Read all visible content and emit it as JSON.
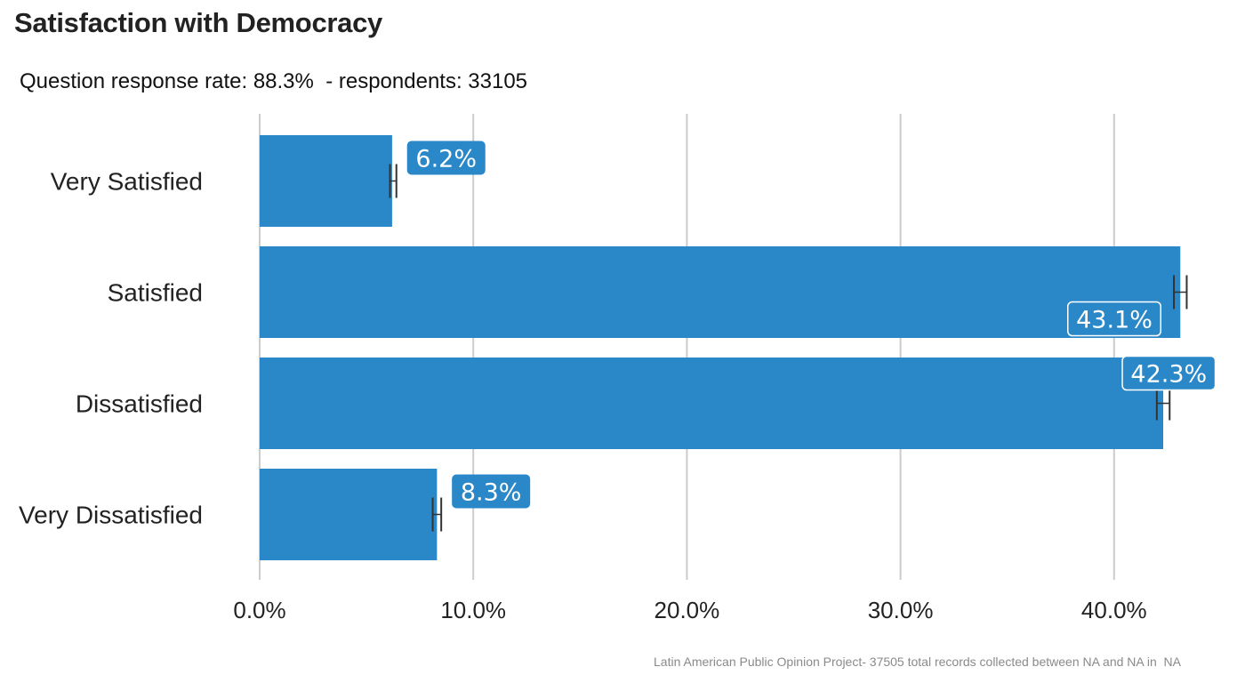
{
  "header": {
    "title": "Satisfaction with Democracy",
    "subtitle": "Question response rate: 88.3%  - respondents: 33105"
  },
  "footer": {
    "caption": "Latin American Public Opinion Project- 37505 total records collected between NA and NA in  NA"
  },
  "colors": {
    "bar": "#2b88c8",
    "grid": "#cccccc",
    "error_bar": "#333333",
    "label_box": "#2b88c8",
    "label_text": "#ffffff"
  },
  "chart_data": {
    "type": "bar",
    "orientation": "horizontal",
    "categories": [
      "Very Satisfied",
      "Satisfied",
      "Dissatisfied",
      "Very Dissatisfied"
    ],
    "values": [
      6.2,
      43.1,
      42.3,
      8.3
    ],
    "data_labels": [
      "6.2%",
      "43.1%",
      "42.3%",
      "8.3%"
    ],
    "error_bars": [
      [
        6.1,
        6.4
      ],
      [
        42.8,
        43.4
      ],
      [
        42.0,
        42.6
      ],
      [
        8.1,
        8.5
      ]
    ],
    "xlim": [
      0,
      45
    ],
    "xticks": [
      0,
      10,
      20,
      30,
      40
    ],
    "xtick_labels": [
      "0.0%",
      "10.0%",
      "20.0%",
      "30.0%",
      "40.0%"
    ],
    "grid": "vertical",
    "legend": "none"
  }
}
